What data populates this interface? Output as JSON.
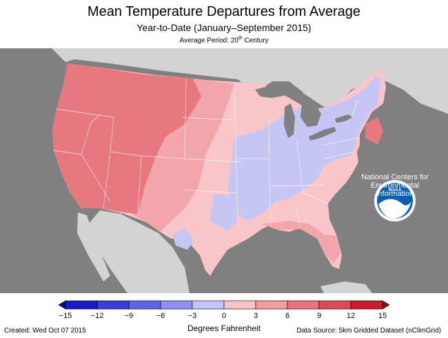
{
  "title": "Mean Temperature Departures from Average",
  "subtitle": "Year-to-Date (January–September 2015)",
  "average_period_prefix": "Average Period: 20",
  "average_period_suffix": "th",
  "average_period_tail": " Century",
  "logo": {
    "name": "NOAA",
    "text": "NOAA"
  },
  "agency": [
    "National Centers for",
    "Environmental",
    "Information"
  ],
  "legend": {
    "units": "Degrees Fahrenheit",
    "ticks": [
      "−15",
      "−12",
      "−9",
      "−6",
      "−3",
      "0",
      "3",
      "6",
      "9",
      "12",
      "15"
    ],
    "tick_values": [
      -15,
      -12,
      -9,
      -6,
      -3,
      0,
      3,
      6,
      9,
      12,
      15
    ],
    "colors": [
      "#1a1ac8",
      "#3b3bdc",
      "#6262e6",
      "#8f8ff0",
      "#c4c4f7",
      "#f7c4c8",
      "#f29aa2",
      "#e8727d",
      "#de4b58",
      "#c81e2c"
    ],
    "under_color": "#0a0a8c",
    "over_color": "#8c0a14"
  },
  "footer": {
    "created": "Created: Wed Oct 07 2015",
    "source": "Data Source: 5km Gridded Dataset (nClimGrid)"
  },
  "colors": {
    "ocean": "#808080",
    "land_outside": "#d3d3d3",
    "strong_warm": "#e8787f",
    "moderate_warm": "#f2a5aa",
    "light_warm": "#f8c6c9",
    "cool": "#c6c6f5"
  }
}
